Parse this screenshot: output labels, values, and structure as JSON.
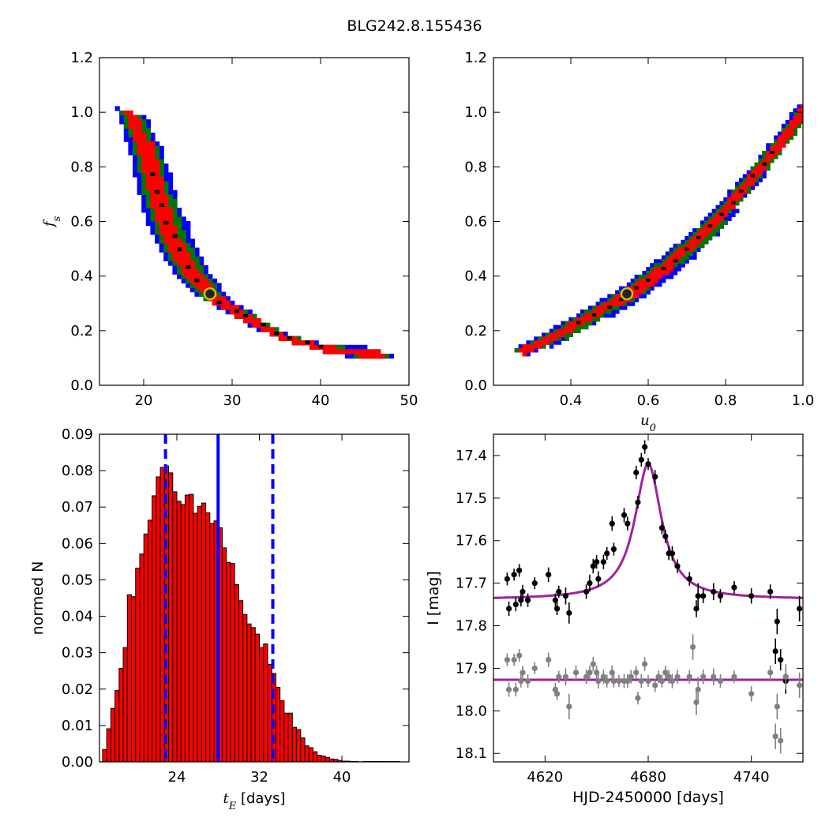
{
  "figure": {
    "title": "BLG242.8.155436"
  },
  "chart_data": [
    {
      "id": "fs_vs_tE",
      "type": "heatmap",
      "xlabel": "",
      "ylabel": "f_s",
      "xlim": [
        15,
        50
      ],
      "ylim": [
        0.0,
        1.2
      ],
      "xticks": [
        20,
        30,
        40,
        50
      ],
      "yticks": [
        0.0,
        0.2,
        0.4,
        0.6,
        0.8,
        1.0,
        1.2
      ],
      "xtick_labels": [
        "20",
        "30",
        "40",
        "50"
      ],
      "ytick_labels": [
        "0.0",
        "0.2",
        "0.4",
        "0.6",
        "0.8",
        "1.0",
        "1.2"
      ],
      "confidence_colors": {
        "outer": "#0000ff",
        "middle": "#007700",
        "inner": "#ff0000",
        "core": "#000000"
      },
      "band_centerline": [
        [
          18.5,
          1.0
        ],
        [
          20,
          0.88
        ],
        [
          21.5,
          0.7
        ],
        [
          23,
          0.55
        ],
        [
          25,
          0.43
        ],
        [
          27.5,
          0.335
        ],
        [
          30,
          0.285
        ],
        [
          33,
          0.225
        ],
        [
          36,
          0.18
        ],
        [
          40,
          0.145
        ],
        [
          43,
          0.13
        ],
        [
          46.5,
          0.125
        ]
      ],
      "best_fit": {
        "x": 27.5,
        "y": 0.335
      }
    },
    {
      "id": "fs_vs_u0",
      "type": "heatmap",
      "xlabel": "u_0",
      "ylabel": "",
      "xlim": [
        0.2,
        1.0
      ],
      "ylim": [
        0.0,
        1.2
      ],
      "xticks": [
        0.4,
        0.6,
        0.8,
        1.0
      ],
      "yticks": [
        0.0,
        0.2,
        0.4,
        0.6,
        0.8,
        1.0,
        1.2
      ],
      "xtick_labels": [
        "0.4",
        "0.6",
        "0.8",
        "1.0"
      ],
      "ytick_labels": [
        "0.0",
        "0.2",
        "0.4",
        "0.6",
        "0.8",
        "1.0",
        "1.2"
      ],
      "band_centerline": [
        [
          0.27,
          0.13
        ],
        [
          0.35,
          0.18
        ],
        [
          0.45,
          0.26
        ],
        [
          0.55,
          0.34
        ],
        [
          0.65,
          0.45
        ],
        [
          0.75,
          0.57
        ],
        [
          0.85,
          0.74
        ],
        [
          0.95,
          0.92
        ],
        [
          1.0,
          1.02
        ]
      ],
      "best_fit": {
        "x": 0.545,
        "y": 0.335
      }
    },
    {
      "id": "tE_histogram",
      "type": "bar",
      "xlabel": "t_E  [days]",
      "ylabel": "normed N",
      "xlim": [
        16.5,
        46.5
      ],
      "ylim": [
        0.0,
        0.09
      ],
      "xticks": [
        24,
        32,
        40
      ],
      "yticks": [
        0.0,
        0.01,
        0.02,
        0.03,
        0.04,
        0.05,
        0.06,
        0.07,
        0.08,
        0.09
      ],
      "xtick_labels": [
        "24",
        "32",
        "40"
      ],
      "ytick_labels": [
        "0.00",
        "0.01",
        "0.02",
        "0.03",
        "0.04",
        "0.05",
        "0.06",
        "0.07",
        "0.08",
        "0.09"
      ],
      "bin_start": 16.8,
      "bin_width": 0.4,
      "values": [
        0.0034,
        0.0091,
        0.0147,
        0.0196,
        0.0257,
        0.0314,
        0.0459,
        0.0454,
        0.0532,
        0.0571,
        0.0626,
        0.0664,
        0.0731,
        0.0783,
        0.0809,
        0.0813,
        0.0794,
        0.0742,
        0.0716,
        0.0707,
        0.0733,
        0.0735,
        0.0683,
        0.0702,
        0.0711,
        0.0684,
        0.0655,
        0.0662,
        0.0643,
        0.0588,
        0.0548,
        0.0545,
        0.0487,
        0.0443,
        0.0405,
        0.0379,
        0.0369,
        0.0351,
        0.0314,
        0.0324,
        0.0268,
        0.0243,
        0.0205,
        0.0168,
        0.0134,
        0.0134,
        0.0095,
        0.0089,
        0.0066,
        0.0044,
        0.0039,
        0.0028,
        0.0018,
        0.0016,
        0.0012,
        0.0008,
        0.0007,
        0.0004,
        0.0002,
        0.0002,
        0.0001,
        0.0001,
        0.0,
        0.0001,
        0.0001,
        0.0001,
        0.0001,
        0.0001,
        0.0001,
        0.0001,
        0.0001,
        0.0001
      ],
      "bar_color": "#ff0000",
      "median": 28.0,
      "ci_lower": 22.9,
      "ci_upper": 33.3,
      "line_color": "#0000ff"
    },
    {
      "id": "lightcurve",
      "type": "scatter",
      "xlabel": "HJD-2450000 [days]",
      "ylabel": "I [mag]",
      "xlim": [
        4590,
        4770
      ],
      "ylim": [
        18.12,
        17.35
      ],
      "y_inverted": true,
      "xticks": [
        4620,
        4680,
        4740
      ],
      "yticks": [
        17.4,
        17.5,
        17.6,
        17.7,
        17.8,
        17.9,
        18.0,
        18.1
      ],
      "xtick_labels": [
        "4620",
        "4680",
        "4740"
      ],
      "ytick_labels": [
        "17.4",
        "17.5",
        "17.6",
        "17.7",
        "17.8",
        "17.9",
        "18.0",
        "18.1"
      ],
      "model": {
        "baseline": 17.738,
        "peak": 17.42,
        "t0": 4680,
        "width": 9.5,
        "color": "#a020a0"
      },
      "residual_baseline": 17.927,
      "series": [
        {
          "name": "",
          "color": "#000000",
          "points": [
            [
              4598,
              17.69,
              0.015
            ],
            [
              4599,
              17.76,
              0.017
            ],
            [
              4602,
              17.68,
              0.014
            ],
            [
              4603,
              17.75,
              0.016
            ],
            [
              4605,
              17.67,
              0.015
            ],
            [
              4606,
              17.74,
              0.015
            ],
            [
              4607,
              17.72,
              0.016
            ],
            [
              4610,
              17.74,
              0.016
            ],
            [
              4614,
              17.7,
              0.014
            ],
            [
              4622,
              17.68,
              0.017
            ],
            [
              4626,
              17.74,
              0.016
            ],
            [
              4627,
              17.76,
              0.015
            ],
            [
              4628,
              17.72,
              0.014
            ],
            [
              4632,
              17.73,
              0.02
            ],
            [
              4634,
              17.77,
              0.025
            ],
            [
              4644,
              17.72,
              0.017
            ],
            [
              4646,
              17.7,
              0.02
            ],
            [
              4648,
              17.66,
              0.017
            ],
            [
              4650,
              17.65,
              0.016
            ],
            [
              4651,
              17.69,
              0.018
            ],
            [
              4654,
              17.65,
              0.017
            ],
            [
              4656,
              17.63,
              0.015
            ],
            [
              4659,
              17.56,
              0.017
            ],
            [
              4660,
              17.62,
              0.015
            ],
            [
              4666,
              17.54,
              0.017
            ],
            [
              4668,
              17.56,
              0.016
            ],
            [
              4673,
              17.44,
              0.016
            ],
            [
              4674,
              17.51,
              0.015
            ],
            [
              4676,
              17.41,
              0.016
            ],
            [
              4678,
              17.38,
              0.016
            ],
            [
              4680,
              17.42,
              0.014
            ],
            [
              4684,
              17.45,
              0.016
            ],
            [
              4688,
              17.57,
              0.015
            ],
            [
              4690,
              17.59,
              0.016
            ],
            [
              4692,
              17.63,
              0.016
            ],
            [
              4694,
              17.63,
              0.017
            ],
            [
              4697,
              17.66,
              0.016
            ],
            [
              4704,
              17.69,
              0.016
            ],
            [
              4708,
              17.76,
              0.02
            ],
            [
              4709,
              17.73,
              0.03
            ],
            [
              4712,
              17.73,
              0.017
            ],
            [
              4718,
              17.72,
              0.02
            ],
            [
              4722,
              17.73,
              0.016
            ],
            [
              4730,
              17.71,
              0.015
            ],
            [
              4740,
              17.73,
              0.018
            ],
            [
              4751,
              17.72,
              0.017
            ],
            [
              4754,
              17.86,
              0.03
            ],
            [
              4755,
              17.79,
              0.03
            ],
            [
              4757,
              17.88,
              0.025
            ],
            [
              4760,
              17.93,
              0.03
            ],
            [
              4768,
              17.76,
              0.03
            ]
          ]
        },
        {
          "name": "",
          "color": "#808080",
          "points": [
            [
              4598,
              17.88,
              0.015
            ],
            [
              4599,
              17.95,
              0.017
            ],
            [
              4602,
              17.88,
              0.014
            ],
            [
              4603,
              17.95,
              0.016
            ],
            [
              4605,
              17.87,
              0.015
            ],
            [
              4606,
              17.93,
              0.015
            ],
            [
              4607,
              17.91,
              0.016
            ],
            [
              4610,
              17.93,
              0.016
            ],
            [
              4614,
              17.9,
              0.014
            ],
            [
              4622,
              17.88,
              0.017
            ],
            [
              4626,
              17.95,
              0.016
            ],
            [
              4627,
              17.96,
              0.015
            ],
            [
              4628,
              17.92,
              0.014
            ],
            [
              4632,
              17.92,
              0.02
            ],
            [
              4634,
              17.99,
              0.03
            ],
            [
              4638,
              17.91,
              0.017
            ],
            [
              4644,
              17.92,
              0.017
            ],
            [
              4646,
              17.91,
              0.016
            ],
            [
              4648,
              17.89,
              0.017
            ],
            [
              4650,
              17.91,
              0.016
            ],
            [
              4651,
              17.93,
              0.018
            ],
            [
              4654,
              17.92,
              0.017
            ],
            [
              4656,
              17.93,
              0.015
            ],
            [
              4659,
              17.91,
              0.017
            ],
            [
              4660,
              17.93,
              0.015
            ],
            [
              4663,
              17.93,
              0.014
            ],
            [
              4666,
              17.93,
              0.017
            ],
            [
              4668,
              17.93,
              0.016
            ],
            [
              4670,
              17.92,
              0.016
            ],
            [
              4673,
              17.91,
              0.016
            ],
            [
              4674,
              17.97,
              0.015
            ],
            [
              4676,
              17.93,
              0.016
            ],
            [
              4678,
              17.89,
              0.016
            ],
            [
              4680,
              17.93,
              0.014
            ],
            [
              4684,
              17.94,
              0.016
            ],
            [
              4686,
              17.92,
              0.015
            ],
            [
              4688,
              17.93,
              0.015
            ],
            [
              4690,
              17.91,
              0.016
            ],
            [
              4692,
              17.92,
              0.016
            ],
            [
              4694,
              17.93,
              0.017
            ],
            [
              4697,
              17.92,
              0.016
            ],
            [
              4704,
              17.92,
              0.016
            ],
            [
              4706,
              17.85,
              0.03
            ],
            [
              4708,
              17.98,
              0.03
            ],
            [
              4709,
              17.95,
              0.03
            ],
            [
              4712,
              17.92,
              0.017
            ],
            [
              4718,
              17.92,
              0.02
            ],
            [
              4722,
              17.93,
              0.016
            ],
            [
              4730,
              17.92,
              0.015
            ],
            [
              4740,
              17.96,
              0.018
            ],
            [
              4751,
              17.91,
              0.017
            ],
            [
              4754,
              18.06,
              0.03
            ],
            [
              4755,
              17.99,
              0.03
            ],
            [
              4757,
              18.07,
              0.03
            ],
            [
              4760,
              17.92,
              0.03
            ],
            [
              4768,
              17.94,
              0.03
            ]
          ]
        }
      ]
    }
  ]
}
